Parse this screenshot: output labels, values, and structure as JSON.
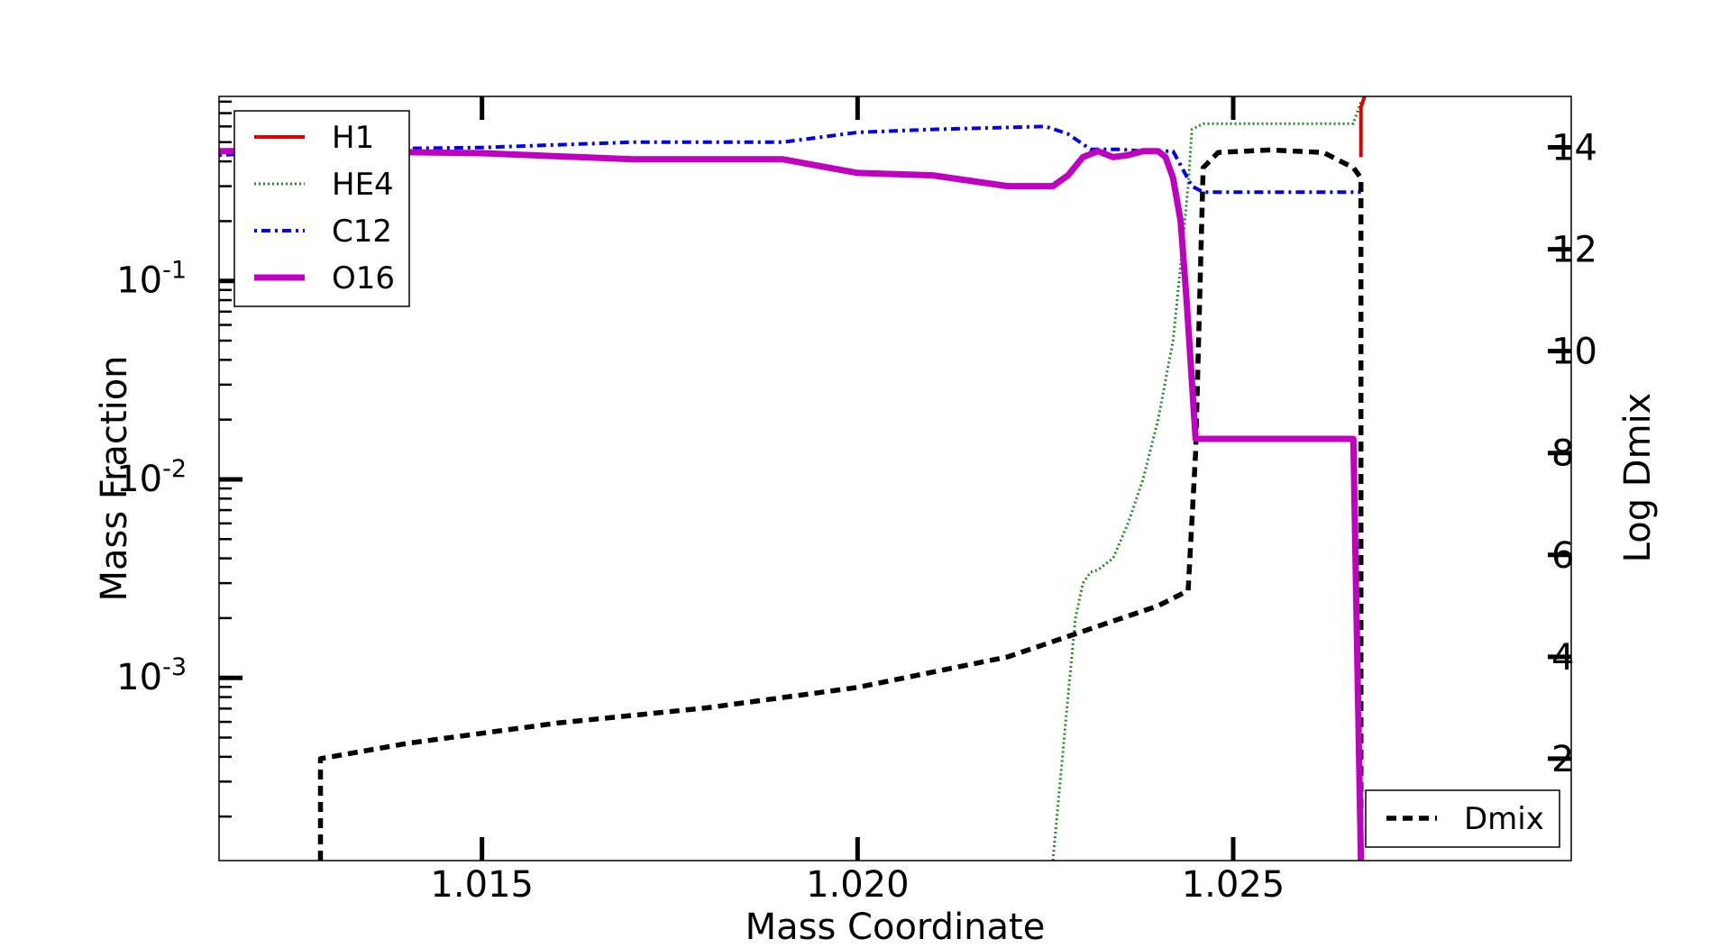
{
  "chart_data": {
    "type": "line",
    "xlabel": "Mass Coordinate",
    "ylabel": "Mass Fraction",
    "y2label": "Log Dmix",
    "xlim": [
      1.0115,
      1.0295
    ],
    "ylim": [
      0.00012,
      0.85
    ],
    "yscale": "log",
    "y2lim": [
      0,
      15
    ],
    "x_ticks": [
      "1.015",
      "1.020",
      "1.025"
    ],
    "y_ticks": [
      {
        "base": "10",
        "exp": "-1"
      },
      {
        "base": "10",
        "exp": "-2"
      },
      {
        "base": "10",
        "exp": "-3"
      }
    ],
    "y2_ticks": [
      "2",
      "4",
      "6",
      "8",
      "10",
      "12",
      "14"
    ],
    "grid": false,
    "legend": {
      "placement": "top-left",
      "entries": [
        "H1",
        "HE4",
        "C12",
        "O16"
      ]
    },
    "legend2": {
      "placement": "bottom-right",
      "entries": [
        "Dmix"
      ]
    },
    "colors": {
      "H1": "#e00000",
      "HE4": "#228b22",
      "C12": "#0000ee",
      "O16": "#c000c0",
      "Dmix": "#000000"
    },
    "series": [
      {
        "name": "H1",
        "axis": "left",
        "style": "solid",
        "points": [
          [
            1.0267,
            0.42
          ],
          [
            1.0267,
            0.75
          ],
          [
            1.02675,
            0.85
          ]
        ]
      },
      {
        "name": "HE4",
        "axis": "left",
        "style": "dotted",
        "points": [
          [
            1.0226,
            0.00012
          ],
          [
            1.0228,
            0.0008
          ],
          [
            1.0229,
            0.002
          ],
          [
            1.023,
            0.003
          ],
          [
            1.0231,
            0.0034
          ],
          [
            1.0232,
            0.0035
          ],
          [
            1.0234,
            0.004
          ],
          [
            1.0236,
            0.006
          ],
          [
            1.0238,
            0.01
          ],
          [
            1.024,
            0.02
          ],
          [
            1.0242,
            0.05
          ],
          [
            1.0243,
            0.12
          ],
          [
            1.0244,
            0.3
          ],
          [
            1.02445,
            0.58
          ],
          [
            1.0246,
            0.62
          ],
          [
            1.0266,
            0.62
          ],
          [
            1.0267,
            0.8
          ]
        ]
      },
      {
        "name": "C12",
        "axis": "left",
        "style": "dashdot",
        "points": [
          [
            1.0115,
            0.43
          ],
          [
            1.013,
            0.46
          ],
          [
            1.015,
            0.47
          ],
          [
            1.017,
            0.5
          ],
          [
            1.019,
            0.5
          ],
          [
            1.02,
            0.56
          ],
          [
            1.021,
            0.58
          ],
          [
            1.0225,
            0.6
          ],
          [
            1.0228,
            0.55
          ],
          [
            1.0231,
            0.46
          ],
          [
            1.0235,
            0.46
          ],
          [
            1.0238,
            0.45
          ],
          [
            1.0242,
            0.45
          ],
          [
            1.02445,
            0.3
          ],
          [
            1.0246,
            0.28
          ],
          [
            1.0266,
            0.28
          ],
          [
            1.0267,
            0.28
          ]
        ]
      },
      {
        "name": "O16",
        "axis": "left",
        "style": "solid-thick",
        "points": [
          [
            1.0115,
            0.45
          ],
          [
            1.013,
            0.45
          ],
          [
            1.015,
            0.44
          ],
          [
            1.017,
            0.41
          ],
          [
            1.019,
            0.41
          ],
          [
            1.02,
            0.35
          ],
          [
            1.021,
            0.34
          ],
          [
            1.022,
            0.3
          ],
          [
            1.0226,
            0.3
          ],
          [
            1.0228,
            0.34
          ],
          [
            1.023,
            0.42
          ],
          [
            1.0232,
            0.45
          ],
          [
            1.0234,
            0.42
          ],
          [
            1.0236,
            0.43
          ],
          [
            1.0238,
            0.45
          ],
          [
            1.024,
            0.45
          ],
          [
            1.0241,
            0.42
          ],
          [
            1.0242,
            0.33
          ],
          [
            1.0243,
            0.2
          ],
          [
            1.02438,
            0.08
          ],
          [
            1.0245,
            0.016
          ],
          [
            1.0266,
            0.016
          ],
          [
            1.0267,
            0.00012
          ]
        ]
      },
      {
        "name": "Dmix",
        "axis": "right",
        "style": "dashed",
        "points": [
          [
            1.01285,
            0.0
          ],
          [
            1.01285,
            2.0
          ],
          [
            1.014,
            2.3
          ],
          [
            1.016,
            2.7
          ],
          [
            1.018,
            3.0
          ],
          [
            1.02,
            3.4
          ],
          [
            1.021,
            3.7
          ],
          [
            1.022,
            4.0
          ],
          [
            1.023,
            4.5
          ],
          [
            1.024,
            5.0
          ],
          [
            1.0244,
            5.3
          ],
          [
            1.0245,
            8.0
          ],
          [
            1.0246,
            13.6
          ],
          [
            1.0248,
            13.9
          ],
          [
            1.0255,
            13.95
          ],
          [
            1.0262,
            13.9
          ],
          [
            1.0266,
            13.6
          ],
          [
            1.0267,
            13.4
          ],
          [
            1.0267,
            0.0
          ]
        ]
      }
    ]
  }
}
